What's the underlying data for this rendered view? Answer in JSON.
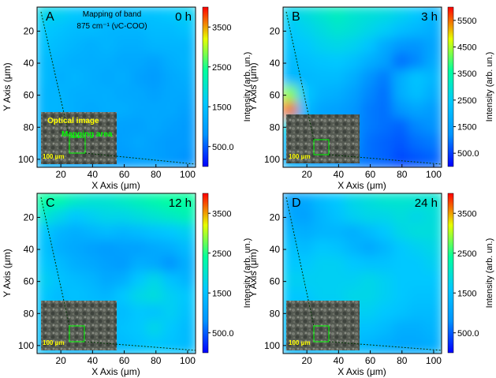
{
  "colorscale": [
    "#0000ff",
    "#0094ff",
    "#00c8ff",
    "#00ff9e",
    "#e6ff00",
    "#ff0000"
  ],
  "chart_data": [
    {
      "type": "heatmap",
      "panel_label": "A",
      "time_label": "0 h",
      "annotation_line1": "Mapping of band",
      "annotation_line2": "875 cm⁻¹ (νC-COO)",
      "xlabel": "X Axis (μm)",
      "ylabel": "Y Axis (μm)",
      "xticks": [
        "20",
        "40",
        "60",
        "80",
        "100"
      ],
      "yticks": [
        "20",
        "40",
        "60",
        "80",
        "100"
      ],
      "xlim": [
        5,
        105
      ],
      "ylim": [
        105,
        5
      ],
      "colorbar_label": "Intensity (arb. un.)",
      "colorbar_ticks": [
        "500.0",
        "1500",
        "2500",
        "3500"
      ],
      "colorbar_range": [
        0,
        4000
      ],
      "inset_text": [
        "Optical image",
        "Mapping area",
        "100 μm"
      ],
      "values": [
        [
          1800,
          1700,
          1600,
          1500,
          1500,
          1400,
          1500,
          1500,
          1600,
          1700
        ],
        [
          1600,
          1500,
          1400,
          1400,
          1300,
          1300,
          1300,
          1400,
          1400,
          1500
        ],
        [
          1500,
          1400,
          1300,
          1200,
          1300,
          1200,
          1200,
          1300,
          1300,
          1300
        ],
        [
          1400,
          1300,
          1200,
          1200,
          1200,
          1100,
          1100,
          1000,
          1200,
          1300
        ],
        [
          1400,
          1200,
          1300,
          1200,
          1100,
          1200,
          1000,
          900,
          1100,
          1200
        ],
        [
          1300,
          1300,
          1200,
          1200,
          1200,
          1100,
          1100,
          1000,
          1100,
          1100
        ],
        [
          1300,
          1300,
          1200,
          1100,
          1200,
          1200,
          1100,
          1100,
          1100,
          1000
        ],
        [
          1300,
          1200,
          1100,
          1100,
          1100,
          1000,
          1000,
          1100,
          1000,
          900
        ],
        [
          1200,
          1200,
          1100,
          1100,
          1000,
          1000,
          1100,
          1000,
          900,
          900
        ],
        [
          1200,
          1100,
          1000,
          1000,
          1000,
          900,
          1000,
          1000,
          900,
          800
        ]
      ]
    },
    {
      "type": "heatmap",
      "panel_label": "B",
      "time_label": "3 h",
      "xlabel": "X Axis (μm)",
      "ylabel": "Y Axis (μm)",
      "xticks": [
        "20",
        "40",
        "60",
        "80",
        "100"
      ],
      "yticks": [
        "20",
        "40",
        "60",
        "80",
        "100"
      ],
      "xlim": [
        5,
        105
      ],
      "ylim": [
        105,
        5
      ],
      "colorbar_label": "Intensity (arb. un.)",
      "colorbar_ticks": [
        "500.0",
        "1500",
        "2500",
        "3500",
        "4500",
        "5500"
      ],
      "colorbar_range": [
        0,
        6000
      ],
      "inset_text": [
        "100 μm"
      ],
      "values": [
        [
          2600,
          2800,
          3000,
          3200,
          3000,
          2900,
          2800,
          2600,
          2400,
          2000
        ],
        [
          2400,
          2600,
          2800,
          3000,
          2900,
          2700,
          2500,
          2200,
          2000,
          1800
        ],
        [
          2300,
          2400,
          2600,
          2700,
          2600,
          2300,
          1700,
          1300,
          1200,
          1600
        ],
        [
          2100,
          2200,
          2300,
          2400,
          2200,
          1800,
          1500,
          900,
          1100,
          1700
        ],
        [
          2000,
          2000,
          2100,
          2100,
          1800,
          1200,
          1000,
          1800,
          2300,
          2000
        ],
        [
          4300,
          2400,
          1900,
          1800,
          1500,
          1100,
          900,
          1800,
          2200,
          1800
        ],
        [
          5500,
          2100,
          1600,
          1500,
          1300,
          1000,
          900,
          1300,
          1600,
          1400
        ],
        [
          2800,
          1800,
          1500,
          1400,
          1200,
          1000,
          900,
          800,
          1100,
          1200
        ],
        [
          2000,
          1600,
          1400,
          1300,
          1200,
          900,
          800,
          700,
          900,
          1000
        ],
        [
          1800,
          1500,
          1300,
          1200,
          1100,
          900,
          800,
          600,
          700,
          800
        ]
      ]
    },
    {
      "type": "heatmap",
      "panel_label": "C",
      "time_label": "12 h",
      "xlabel": "X Axis (μm)",
      "ylabel": "Y Axis (μm)",
      "xticks": [
        "20",
        "40",
        "60",
        "80",
        "100"
      ],
      "yticks": [
        "20",
        "40",
        "60",
        "80",
        "100"
      ],
      "xlim": [
        5,
        105
      ],
      "ylim": [
        105,
        5
      ],
      "colorbar_label": "Intensity (arb. un.)",
      "colorbar_ticks": [
        "500.0",
        "1500",
        "2500",
        "3500"
      ],
      "colorbar_range": [
        0,
        4000
      ],
      "inset_text": [
        "100 μm"
      ],
      "values": [
        [
          2400,
          2300,
          2100,
          2000,
          2000,
          2100,
          2200,
          2300,
          2400,
          2400
        ],
        [
          2000,
          1800,
          1600,
          1700,
          1800,
          1800,
          1900,
          2000,
          2100,
          2200
        ],
        [
          1600,
          1300,
          1200,
          1300,
          1400,
          1300,
          1400,
          1500,
          1600,
          1700
        ],
        [
          1500,
          1200,
          1100,
          1000,
          900,
          1000,
          1000,
          1100,
          1200,
          1400
        ],
        [
          1600,
          1400,
          1200,
          1100,
          1000,
          900,
          1200,
          1100,
          800,
          1200
        ],
        [
          1700,
          1500,
          1400,
          1300,
          1100,
          1200,
          1600,
          1800,
          1500,
          1300
        ],
        [
          1600,
          1400,
          1500,
          1400,
          1300,
          1600,
          1800,
          1900,
          1700,
          1600
        ],
        [
          1500,
          1400,
          1300,
          1400,
          1500,
          1400,
          1600,
          1500,
          1700,
          1500
        ],
        [
          1500,
          1300,
          1200,
          1300,
          1400,
          1500,
          1600,
          1800,
          1600,
          1400
        ],
        [
          1400,
          1300,
          1200,
          1300,
          1300,
          1400,
          1500,
          1600,
          1500,
          1400
        ]
      ]
    },
    {
      "type": "heatmap",
      "panel_label": "D",
      "time_label": "24 h",
      "xlabel": "X Axis (μm)",
      "ylabel": "Y Axis (μm)",
      "xticks": [
        "20",
        "40",
        "60",
        "80",
        "100"
      ],
      "yticks": [
        "20",
        "40",
        "60",
        "80",
        "100"
      ],
      "xlim": [
        5,
        105
      ],
      "ylim": [
        105,
        5
      ],
      "colorbar_label": "Intensity (arb. un.)",
      "colorbar_ticks": [
        "500.0",
        "1500",
        "2500",
        "3500"
      ],
      "colorbar_range": [
        0,
        4000
      ],
      "inset_text": [
        "100 μm"
      ],
      "values": [
        [
          1000,
          1100,
          1400,
          1600,
          1800,
          1900,
          2000,
          2000,
          2000,
          2000
        ],
        [
          1100,
          1000,
          1300,
          1500,
          1700,
          1800,
          1800,
          1900,
          1800,
          1900
        ],
        [
          1300,
          1200,
          1300,
          1300,
          1200,
          1400,
          1600,
          1800,
          1900,
          1900
        ],
        [
          1500,
          1400,
          1600,
          1500,
          1300,
          1100,
          1300,
          1600,
          1700,
          1800
        ],
        [
          1600,
          1600,
          1700,
          1700,
          1600,
          1500,
          1500,
          1600,
          1600,
          1700
        ],
        [
          1700,
          1700,
          1700,
          1700,
          1700,
          1800,
          1700,
          1600,
          1600,
          1600
        ],
        [
          1600,
          1600,
          1700,
          1700,
          1800,
          1800,
          1700,
          1600,
          1500,
          1500
        ],
        [
          1500,
          1400,
          1500,
          1600,
          1700,
          1700,
          1600,
          1500,
          1400,
          1400
        ],
        [
          1400,
          1300,
          1400,
          1500,
          1500,
          1500,
          1400,
          1200,
          1200,
          1300
        ],
        [
          1300,
          1200,
          1300,
          1400,
          1400,
          1300,
          1200,
          1100,
          1100,
          1200
        ]
      ]
    }
  ]
}
